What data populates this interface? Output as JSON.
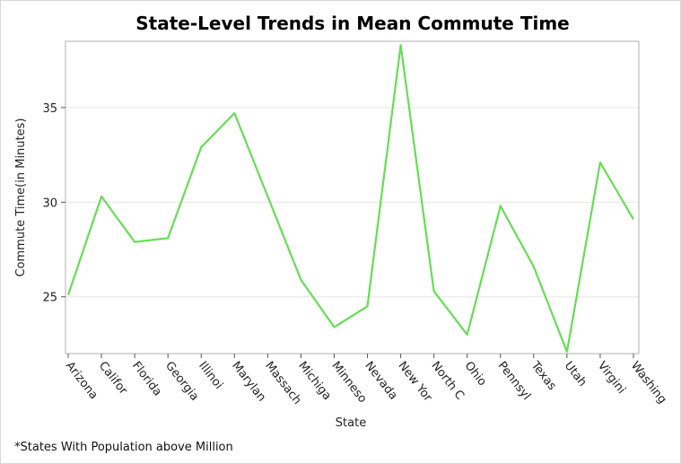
{
  "chart_data": {
    "type": "line",
    "title": "State-Level Trends in Mean Commute Time",
    "xlabel": "State",
    "ylabel": "Commute Time(in Minutes)",
    "footnote": "*States With Population above Million",
    "categories": [
      "Arizona",
      "Califor",
      "Florida",
      "Georgia",
      "Illinoi",
      "Marylan",
      "Massach",
      "Michiga",
      "Minneso",
      "Nevada",
      "New Yor",
      "North C",
      "Ohio",
      "Pennsyl",
      "Texas",
      "Utah",
      "Virgini",
      "Washing"
    ],
    "series": [
      {
        "values": [
          25.1,
          30.3,
          27.9,
          28.1,
          32.9,
          34.7,
          30.3,
          25.9,
          23.4,
          24.5,
          38.3,
          25.3,
          23.0,
          29.8,
          26.6,
          22.1,
          32.1,
          29.1
        ],
        "color": "#66dd55"
      }
    ],
    "yticks": [
      25,
      30,
      35
    ],
    "ylim": [
      22.0,
      38.5
    ],
    "grid": "horizontal"
  }
}
